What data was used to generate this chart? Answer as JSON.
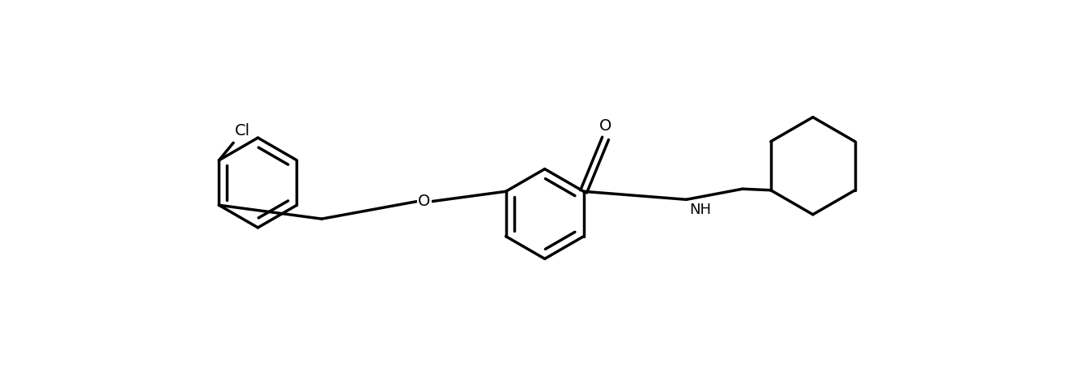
{
  "background_color": "#ffffff",
  "line_color": "#000000",
  "line_width": 2.5,
  "figsize": [
    13.2,
    4.74
  ],
  "dpi": 100,
  "xlim": [
    0,
    13.2
  ],
  "ylim": [
    0,
    4.74
  ],
  "cl_label": "Cl",
  "o_ether_label": "O",
  "o_carbonyl_label": "O",
  "nh_label": "NH",
  "font_size": 14,
  "nh_font_size": 13
}
